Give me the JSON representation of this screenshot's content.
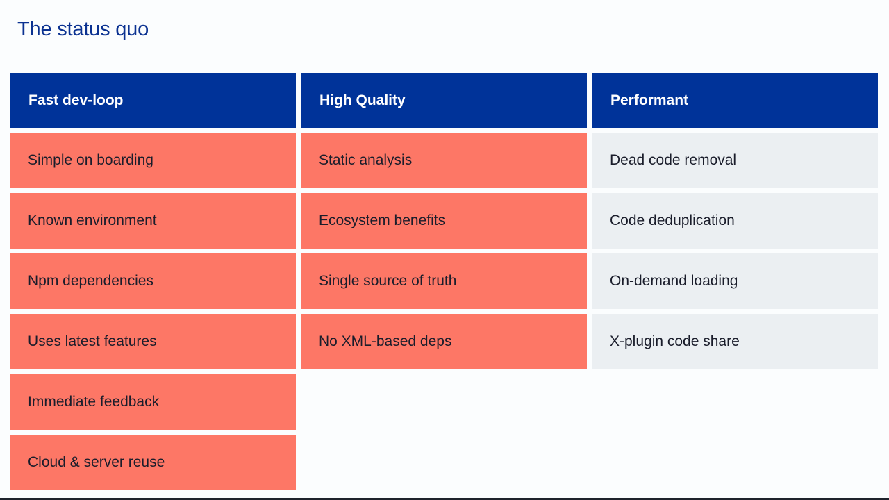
{
  "slide": {
    "title": "The status quo"
  },
  "columns": [
    {
      "header": "Fast dev-loop",
      "items": [
        "Simple on boarding",
        "Known environment",
        "Npm dependencies",
        "Uses latest features",
        "Immediate feedback",
        "Cloud & server reuse"
      ]
    },
    {
      "header": "High Quality",
      "items": [
        "Static analysis",
        "Ecosystem benefits",
        "Single source of truth",
        "No XML-based deps"
      ]
    },
    {
      "header": "Performant",
      "items": [
        "Dead code removal",
        "Code deduplication",
        "On-demand loading",
        "X-plugin code share"
      ]
    }
  ],
  "colors": {
    "header_bg": "#003399",
    "highlight_cell": "#fd7766",
    "neutral_cell": "#ebeff2",
    "title": "#0b3291"
  }
}
